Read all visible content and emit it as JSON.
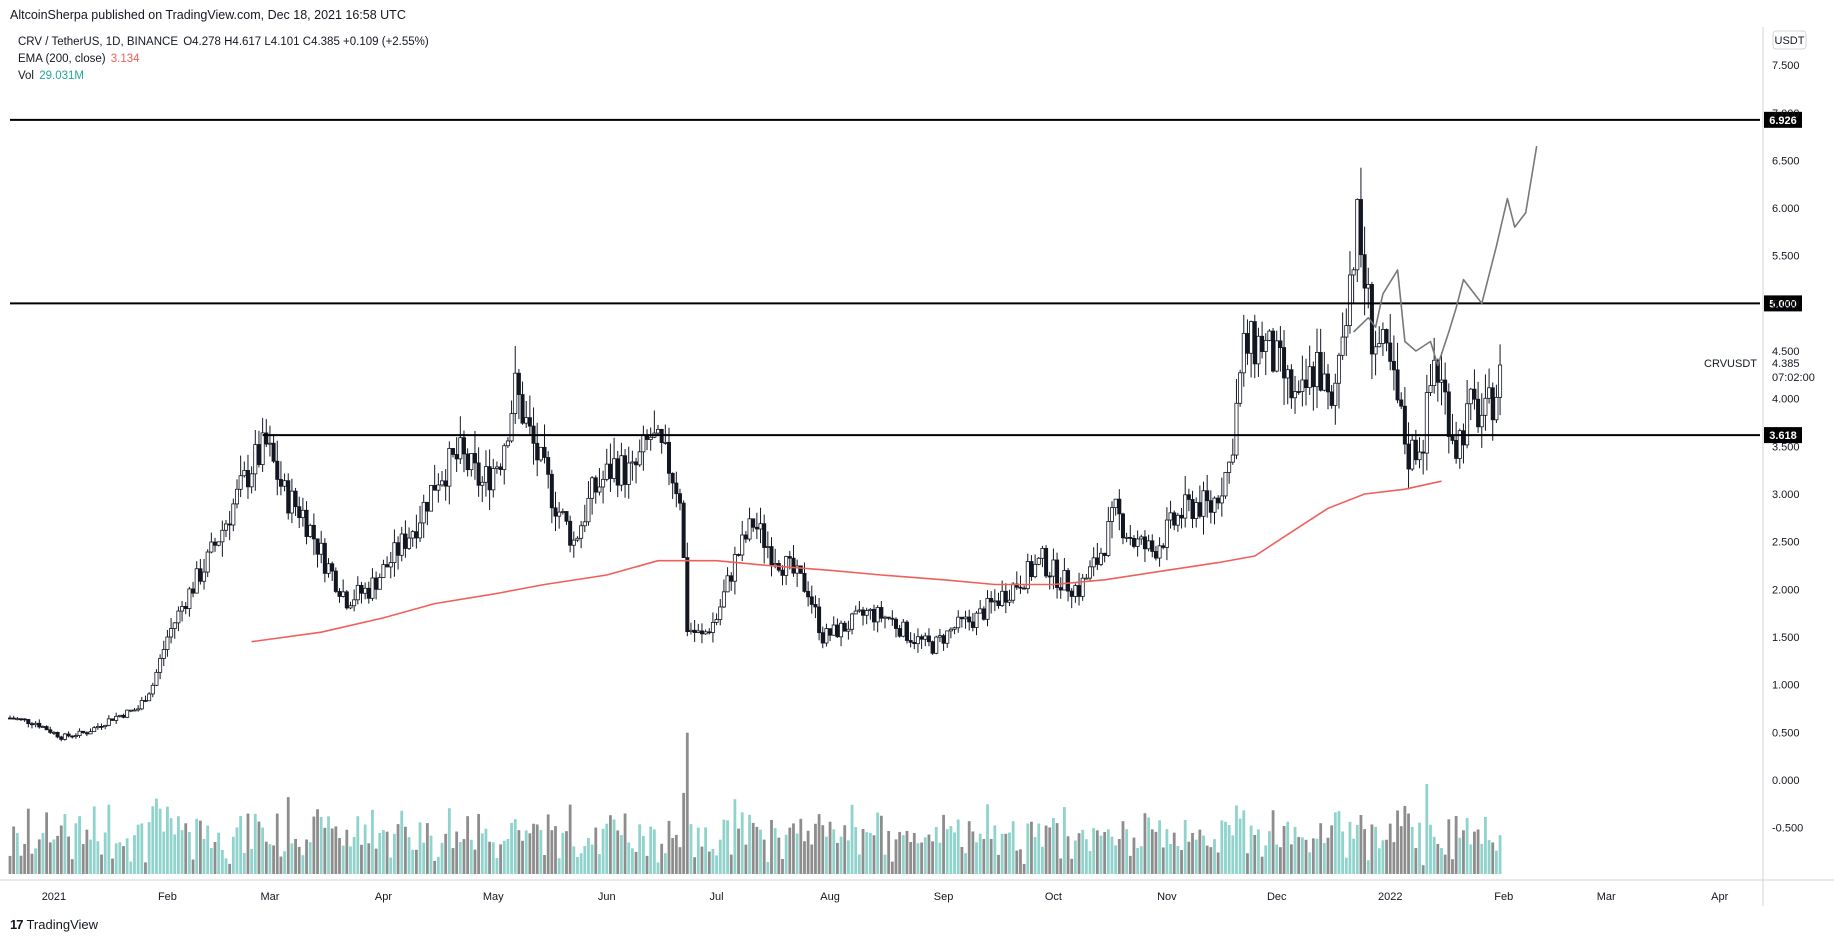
{
  "header": {
    "publisher": "AltcoinSherpa published on TradingView.com, Dec 18, 2021 16:58 UTC"
  },
  "legend": {
    "symbol": "CRV / TetherUS, 1D, BINANCE",
    "ohlc": "O4.278 H4.617 L4.101 C4.385 +0.109 (+2.55%)",
    "ema_label": "EMA (200, close)",
    "ema_value": "3.134",
    "vol_label": "Vol",
    "vol_value": "29.031M"
  },
  "price_axis": {
    "currency": "USDT",
    "last_symbol": "CRVUSDT",
    "last_price": "4.385",
    "countdown": "07:02:00"
  },
  "footer": {
    "brand": "TradingView",
    "logo_glyph": "17"
  },
  "colors": {
    "up": "#131722",
    "down": "#131722",
    "ema": "#f0605a",
    "vol_up": "#8fd3cc",
    "vol_down": "#8d8d8d",
    "level": "#000000",
    "projection": "#787878"
  },
  "chart_data": {
    "type": "candlestick",
    "symbol": "CRV / TetherUS",
    "x_range": [
      "2020-12-20",
      "2022-04-12"
    ],
    "ylim": [
      -1.05,
      7.9
    ],
    "y_ticks": [
      "7.500",
      "7.000",
      "6.500",
      "6.000",
      "5.500",
      "5.000",
      "4.500",
      "4.000",
      "3.500",
      "3.000",
      "2.500",
      "2.000",
      "1.500",
      "1.000",
      "0.500",
      "0.000",
      "-0.500"
    ],
    "x_ticks": [
      {
        "label": "2021",
        "date": "2021-01-01"
      },
      {
        "label": "Feb",
        "date": "2021-02-01"
      },
      {
        "label": "Mar",
        "date": "2021-03-01"
      },
      {
        "label": "Apr",
        "date": "2021-04-01"
      },
      {
        "label": "May",
        "date": "2021-05-01"
      },
      {
        "label": "Jun",
        "date": "2021-06-01"
      },
      {
        "label": "Jul",
        "date": "2021-07-01"
      },
      {
        "label": "Aug",
        "date": "2021-08-01"
      },
      {
        "label": "Sep",
        "date": "2021-09-01"
      },
      {
        "label": "Oct",
        "date": "2021-10-01"
      },
      {
        "label": "Nov",
        "date": "2021-11-01"
      },
      {
        "label": "Dec",
        "date": "2021-12-01"
      },
      {
        "label": "2022",
        "date": "2022-01-01"
      },
      {
        "label": "Feb",
        "date": "2022-02-01"
      },
      {
        "label": "Mar",
        "date": "2022-03-01"
      },
      {
        "label": "Apr",
        "date": "2022-04-01"
      }
    ],
    "price_path": [
      [
        "2020-12-20",
        0.65
      ],
      [
        "2020-12-27",
        0.6
      ],
      [
        "2021-01-03",
        0.45
      ],
      [
        "2021-01-10",
        0.5
      ],
      [
        "2021-01-17",
        0.65
      ],
      [
        "2021-01-24",
        0.75
      ],
      [
        "2021-01-28",
        1.0
      ],
      [
        "2021-02-01",
        1.5
      ],
      [
        "2021-02-06",
        1.9
      ],
      [
        "2021-02-12",
        2.3
      ],
      [
        "2021-02-18",
        2.8
      ],
      [
        "2021-02-24",
        3.3
      ],
      [
        "2021-02-28",
        3.5
      ],
      [
        "2021-03-05",
        3.0
      ],
      [
        "2021-03-10",
        2.8
      ],
      [
        "2021-03-16",
        2.3
      ],
      [
        "2021-03-22",
        1.9
      ],
      [
        "2021-03-28",
        2.0
      ],
      [
        "2021-04-03",
        2.3
      ],
      [
        "2021-04-10",
        2.7
      ],
      [
        "2021-04-16",
        3.2
      ],
      [
        "2021-04-22",
        3.4
      ],
      [
        "2021-04-28",
        3.1
      ],
      [
        "2021-05-03",
        3.4
      ],
      [
        "2021-05-07",
        4.1
      ],
      [
        "2021-05-12",
        3.5
      ],
      [
        "2021-05-18",
        2.9
      ],
      [
        "2021-05-23",
        2.5
      ],
      [
        "2021-05-28",
        3.0
      ],
      [
        "2021-06-03",
        3.3
      ],
      [
        "2021-06-08",
        3.2
      ],
      [
        "2021-06-13",
        3.6
      ],
      [
        "2021-06-18",
        3.3
      ],
      [
        "2021-06-21",
        3.0
      ],
      [
        "2021-06-23",
        1.6
      ],
      [
        "2021-06-27",
        1.5
      ],
      [
        "2021-07-01",
        1.7
      ],
      [
        "2021-07-06",
        2.3
      ],
      [
        "2021-07-11",
        2.7
      ],
      [
        "2021-07-16",
        2.4
      ],
      [
        "2021-07-21",
        2.2
      ],
      [
        "2021-07-26",
        2.0
      ],
      [
        "2021-07-30",
        1.5
      ],
      [
        "2021-08-05",
        1.6
      ],
      [
        "2021-08-11",
        1.75
      ],
      [
        "2021-08-17",
        1.7
      ],
      [
        "2021-08-23",
        1.5
      ],
      [
        "2021-08-29",
        1.4
      ],
      [
        "2021-09-04",
        1.6
      ],
      [
        "2021-09-10",
        1.7
      ],
      [
        "2021-09-16",
        1.9
      ],
      [
        "2021-09-22",
        2.1
      ],
      [
        "2021-09-28",
        2.3
      ],
      [
        "2021-10-03",
        2.1
      ],
      [
        "2021-10-08",
        2.0
      ],
      [
        "2021-10-13",
        2.3
      ],
      [
        "2021-10-18",
        2.8
      ],
      [
        "2021-10-23",
        2.5
      ],
      [
        "2021-10-28",
        2.4
      ],
      [
        "2021-11-01",
        2.6
      ],
      [
        "2021-11-05",
        2.8
      ],
      [
        "2021-11-09",
        2.9
      ],
      [
        "2021-11-13",
        2.85
      ],
      [
        "2021-11-18",
        3.3
      ],
      [
        "2021-11-22",
        4.5
      ],
      [
        "2021-11-27",
        4.6
      ],
      [
        "2021-12-02",
        4.3
      ],
      [
        "2021-12-07",
        3.9
      ],
      [
        "2021-12-12",
        4.4
      ],
      [
        "2021-12-16",
        3.8
      ],
      [
        "2021-12-19",
        4.8
      ],
      [
        "2021-12-23",
        5.8
      ],
      [
        "2021-12-27",
        4.7
      ],
      [
        "2022-01-01",
        4.3
      ],
      [
        "2022-01-06",
        3.4
      ],
      [
        "2022-01-10",
        3.6
      ],
      [
        "2022-01-13",
        4.4
      ],
      [
        "2022-01-16",
        4.0
      ],
      [
        "2022-01-19",
        3.5
      ],
      [
        "2022-01-23",
        3.9
      ],
      [
        "2022-01-27",
        3.8
      ],
      [
        "2022-01-31",
        4.2
      ]
    ],
    "ema_path": [
      [
        "2021-02-24",
        1.45
      ],
      [
        "2021-03-15",
        1.55
      ],
      [
        "2021-04-01",
        1.7
      ],
      [
        "2021-04-15",
        1.85
      ],
      [
        "2021-05-01",
        1.95
      ],
      [
        "2021-05-15",
        2.05
      ],
      [
        "2021-06-01",
        2.15
      ],
      [
        "2021-06-15",
        2.3
      ],
      [
        "2021-07-01",
        2.3
      ],
      [
        "2021-07-15",
        2.25
      ],
      [
        "2021-08-01",
        2.2
      ],
      [
        "2021-08-15",
        2.15
      ],
      [
        "2021-09-01",
        2.1
      ],
      [
        "2021-09-15",
        2.05
      ],
      [
        "2021-10-01",
        2.05
      ],
      [
        "2021-10-15",
        2.1
      ],
      [
        "2021-11-01",
        2.2
      ],
      [
        "2021-11-15",
        2.28
      ],
      [
        "2021-11-25",
        2.35
      ],
      [
        "2021-12-05",
        2.6
      ],
      [
        "2021-12-15",
        2.85
      ],
      [
        "2021-12-25",
        3.0
      ],
      [
        "2022-01-05",
        3.05
      ],
      [
        "2022-01-15",
        3.134
      ]
    ],
    "projection_path": [
      [
        "2021-12-22",
        4.7
      ],
      [
        "2021-12-26",
        4.85
      ],
      [
        "2021-12-28",
        4.75
      ],
      [
        "2021-12-30",
        5.1
      ],
      [
        "2022-01-03",
        5.35
      ],
      [
        "2022-01-05",
        4.6
      ],
      [
        "2022-01-08",
        4.5
      ],
      [
        "2022-01-12",
        4.6
      ],
      [
        "2022-01-14",
        4.35
      ],
      [
        "2022-01-17",
        4.7
      ],
      [
        "2022-01-19",
        4.95
      ],
      [
        "2022-01-21",
        5.25
      ],
      [
        "2022-01-23",
        5.15
      ],
      [
        "2022-01-26",
        5.0
      ],
      [
        "2022-01-30",
        5.6
      ],
      [
        "2022-02-02",
        6.1
      ],
      [
        "2022-02-04",
        5.8
      ],
      [
        "2022-02-07",
        5.95
      ],
      [
        "2022-02-10",
        6.65
      ]
    ],
    "horizontal_levels": [
      {
        "value": 6.926,
        "label": "6.926",
        "from": "2020-12-20"
      },
      {
        "value": 5.0,
        "label": "5.000",
        "from": "2020-12-20"
      },
      {
        "value": 3.618,
        "label": "3.618",
        "from": "2021-02-27"
      }
    ]
  }
}
